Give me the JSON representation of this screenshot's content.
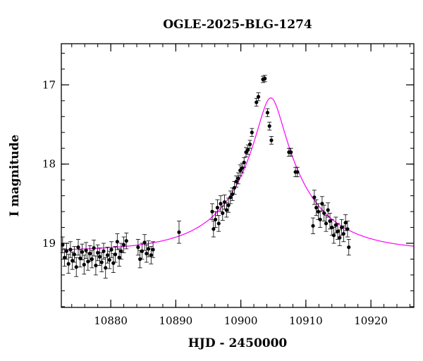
{
  "chart_data": {
    "type": "scatter",
    "title": "OGLE-2025-BLG-1274",
    "xlabel": "HJD - 2450000",
    "ylabel": "I magnitude",
    "xlim": [
      10872.4,
      10926.6
    ],
    "ylim": [
      19.81,
      16.48
    ],
    "y_inverted": true,
    "grid": false,
    "x_major_ticks": [
      10880,
      10890,
      10900,
      10910,
      10920
    ],
    "x_tick_labels": [
      "10880",
      "10890",
      "10900",
      "10910",
      "10920"
    ],
    "y_major_ticks": [
      17,
      18,
      19
    ],
    "y_tick_labels": [
      "17",
      "18",
      "19"
    ],
    "x_minor_step": 2,
    "y_minor_step": 0.2,
    "colors": {
      "points": "#000000",
      "model": "#ff00ff"
    },
    "model": {
      "name": "",
      "t0": 10904.6,
      "u0": 0.17,
      "tE": 11.0,
      "I_base": 19.1
    },
    "series": [
      {
        "name": "",
        "x": [
          10872.6,
          10872.9,
          10873.2,
          10873.5,
          10873.8,
          10874.1,
          10874.4,
          10874.7,
          10875.0,
          10875.3,
          10875.6,
          10875.9,
          10876.2,
          10876.5,
          10876.8,
          10877.1,
          10877.4,
          10877.7,
          10878.0,
          10878.3,
          10878.6,
          10878.9,
          10879.2,
          10879.5,
          10879.8,
          10880.1,
          10880.4,
          10880.7,
          10881.0,
          10881.3,
          10881.6,
          10882.0,
          10882.4,
          10884.2,
          10884.5,
          10884.8,
          10885.2,
          10885.5,
          10885.8,
          10886.2,
          10886.5,
          10890.5,
          10895.6,
          10895.8,
          10896.1,
          10896.4,
          10896.6,
          10896.9,
          10897.2,
          10897.5,
          10897.8,
          10898.1,
          10898.4,
          10898.7,
          10899.0,
          10899.3,
          10899.6,
          10899.9,
          10900.2,
          10900.5,
          10900.8,
          10901.1,
          10901.4,
          10901.7,
          10902.4,
          10902.7,
          10903.4,
          10903.7,
          10904.1,
          10904.4,
          10904.7,
          10907.4,
          10907.7,
          10908.4,
          10908.7,
          10911.1,
          10911.3,
          10911.6,
          10911.9,
          10912.2,
          10912.5,
          10912.8,
          10913.1,
          10913.4,
          10913.7,
          10914.0,
          10914.3,
          10914.6,
          10914.9,
          10915.2,
          10915.5,
          10915.8,
          10916.1,
          10916.4,
          10916.6
        ],
        "y": [
          19.02,
          19.18,
          19.1,
          19.26,
          19.08,
          19.22,
          19.14,
          19.3,
          19.05,
          19.19,
          19.11,
          19.27,
          19.09,
          19.23,
          19.13,
          19.2,
          19.06,
          19.28,
          19.12,
          19.17,
          19.24,
          19.1,
          19.31,
          19.15,
          19.21,
          19.08,
          19.25,
          19.14,
          18.98,
          19.18,
          19.1,
          19.02,
          18.97,
          19.05,
          19.2,
          19.1,
          18.99,
          19.13,
          19.07,
          19.15,
          19.08,
          18.86,
          18.6,
          18.82,
          18.7,
          18.55,
          18.75,
          18.5,
          18.62,
          18.48,
          18.58,
          18.52,
          18.42,
          18.38,
          18.3,
          18.22,
          18.18,
          18.08,
          18.05,
          17.98,
          17.85,
          17.82,
          17.75,
          17.6,
          17.22,
          17.15,
          16.93,
          16.92,
          17.35,
          17.52,
          17.7,
          17.85,
          17.85,
          18.1,
          18.1,
          18.78,
          18.42,
          18.55,
          18.6,
          18.7,
          18.5,
          18.62,
          18.75,
          18.58,
          18.72,
          18.8,
          18.9,
          18.77,
          18.85,
          18.93,
          18.8,
          18.88,
          18.74,
          18.82,
          19.05
        ],
        "err": [
          0.1,
          0.11,
          0.1,
          0.12,
          0.1,
          0.11,
          0.1,
          0.12,
          0.1,
          0.11,
          0.1,
          0.12,
          0.1,
          0.11,
          0.1,
          0.11,
          0.1,
          0.12,
          0.1,
          0.11,
          0.12,
          0.1,
          0.13,
          0.1,
          0.11,
          0.1,
          0.12,
          0.1,
          0.1,
          0.11,
          0.1,
          0.1,
          0.1,
          0.1,
          0.11,
          0.1,
          0.1,
          0.11,
          0.1,
          0.11,
          0.1,
          0.14,
          0.1,
          0.1,
          0.1,
          0.1,
          0.1,
          0.1,
          0.09,
          0.09,
          0.09,
          0.09,
          0.08,
          0.08,
          0.08,
          0.07,
          0.07,
          0.07,
          0.06,
          0.06,
          0.06,
          0.06,
          0.05,
          0.05,
          0.05,
          0.05,
          0.04,
          0.04,
          0.05,
          0.05,
          0.05,
          0.05,
          0.05,
          0.06,
          0.06,
          0.1,
          0.09,
          0.1,
          0.1,
          0.1,
          0.09,
          0.1,
          0.1,
          0.09,
          0.1,
          0.1,
          0.1,
          0.1,
          0.1,
          0.1,
          0.1,
          0.1,
          0.1,
          0.1,
          0.1
        ]
      }
    ]
  }
}
